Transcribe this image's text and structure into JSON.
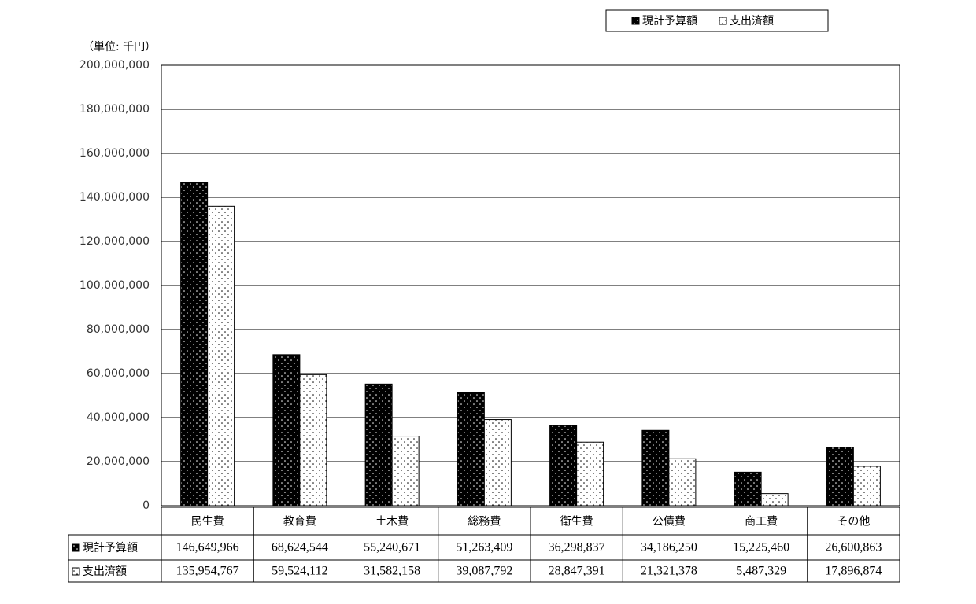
{
  "chart_data": {
    "type": "bar",
    "unit_label": "（単位: 千円）",
    "categories": [
      "民生費",
      "教育費",
      "土木費",
      "総務費",
      "衛生費",
      "公債費",
      "商工費",
      "その他"
    ],
    "series": [
      {
        "name": "現計予算額",
        "color": "#000000",
        "values": [
          146649966,
          68624544,
          55240671,
          51263409,
          36298837,
          34186250,
          15225460,
          26600863
        ],
        "value_labels": [
          "146,649,966",
          "68,624,544",
          "55,240,671",
          "51,263,409",
          "36,298,837",
          "34,186,250",
          "15,225,460",
          "26,600,863"
        ]
      },
      {
        "name": "支出済額",
        "color": "#ffffff",
        "values": [
          135954767,
          59524112,
          31582158,
          39087792,
          28847391,
          21321378,
          5487329,
          17896874
        ],
        "value_labels": [
          "135,954,767",
          "59,524,112",
          "31,582,158",
          "39,087,792",
          "28,847,391",
          "21,321,378",
          "5,487,329",
          "17,896,874"
        ]
      }
    ],
    "ylim": [
      0,
      200000000
    ],
    "yticks": [
      0,
      {
        "value": 20000000,
        "label": "20,000,000"
      },
      {
        "value": 40000000,
        "label": "40,000,000"
      },
      {
        "value": 60000000,
        "label": "60,000,000"
      },
      {
        "value": 80000000,
        "label": "80,000,000"
      },
      {
        "value": 100000000,
        "label": "100,000,000"
      },
      {
        "value": 120000000,
        "label": "120,000,000"
      },
      {
        "value": 140000000,
        "label": "140,000,000"
      },
      {
        "value": 160000000,
        "label": "160,000,000"
      },
      {
        "value": 180000000,
        "label": "180,000,000"
      },
      {
        "value": 200000000,
        "label": "200,000,000"
      }
    ],
    "grid": true,
    "legend": "top-right"
  }
}
